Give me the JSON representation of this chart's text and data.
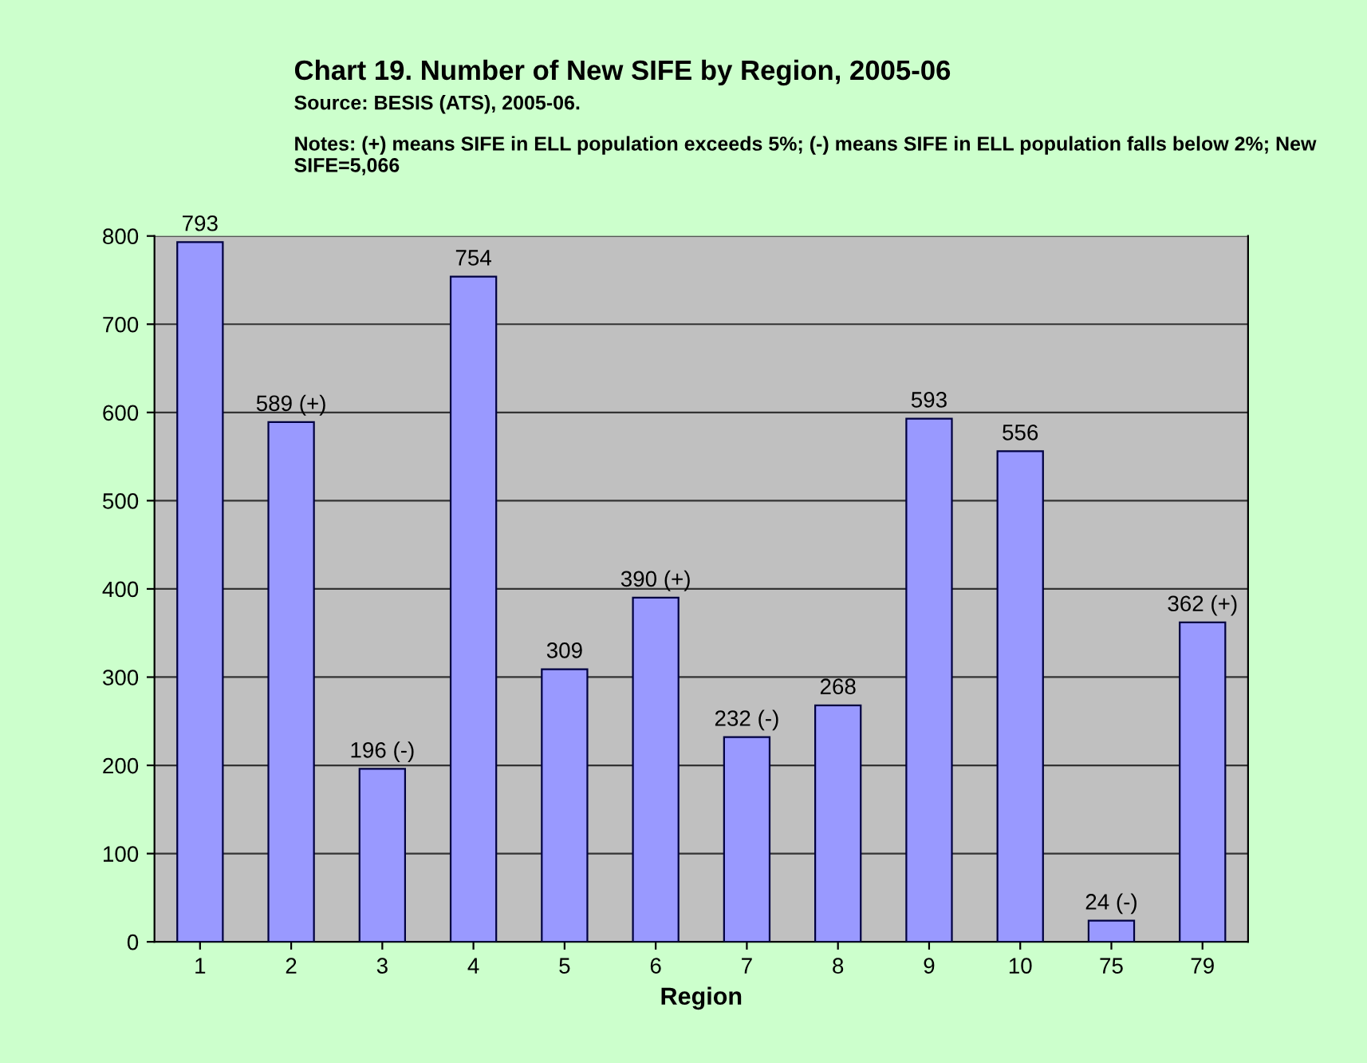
{
  "chart_data": {
    "type": "bar",
    "title": "Chart 19. Number of New SIFE by Region, 2005-06",
    "subtitle": "Source: BESIS (ATS), 2005-06.",
    "annotations": [
      "Notes: (+) means SIFE in ELL population exceeds 5%; (-) means SIFE in ELL population falls below 2%; New SIFE=5,066"
    ],
    "xlabel": "Region",
    "categories": [
      "1",
      "2",
      "3",
      "4",
      "5",
      "6",
      "7",
      "8",
      "9",
      "10",
      "75",
      "79"
    ],
    "values": [
      793,
      589,
      196,
      754,
      309,
      390,
      232,
      268,
      593,
      556,
      24,
      362
    ],
    "value_labels": [
      "793",
      "589 (+)",
      "196 (-)",
      "754",
      "309",
      "390 (+)",
      "232 (-)",
      "268",
      "593",
      "556",
      "24 (-)",
      "362 (+)"
    ],
    "color": "#9999ff",
    "ylim": [
      0,
      800
    ],
    "yticks": [
      0,
      100,
      200,
      300,
      400,
      500,
      600,
      700,
      800
    ],
    "grid": "y"
  }
}
